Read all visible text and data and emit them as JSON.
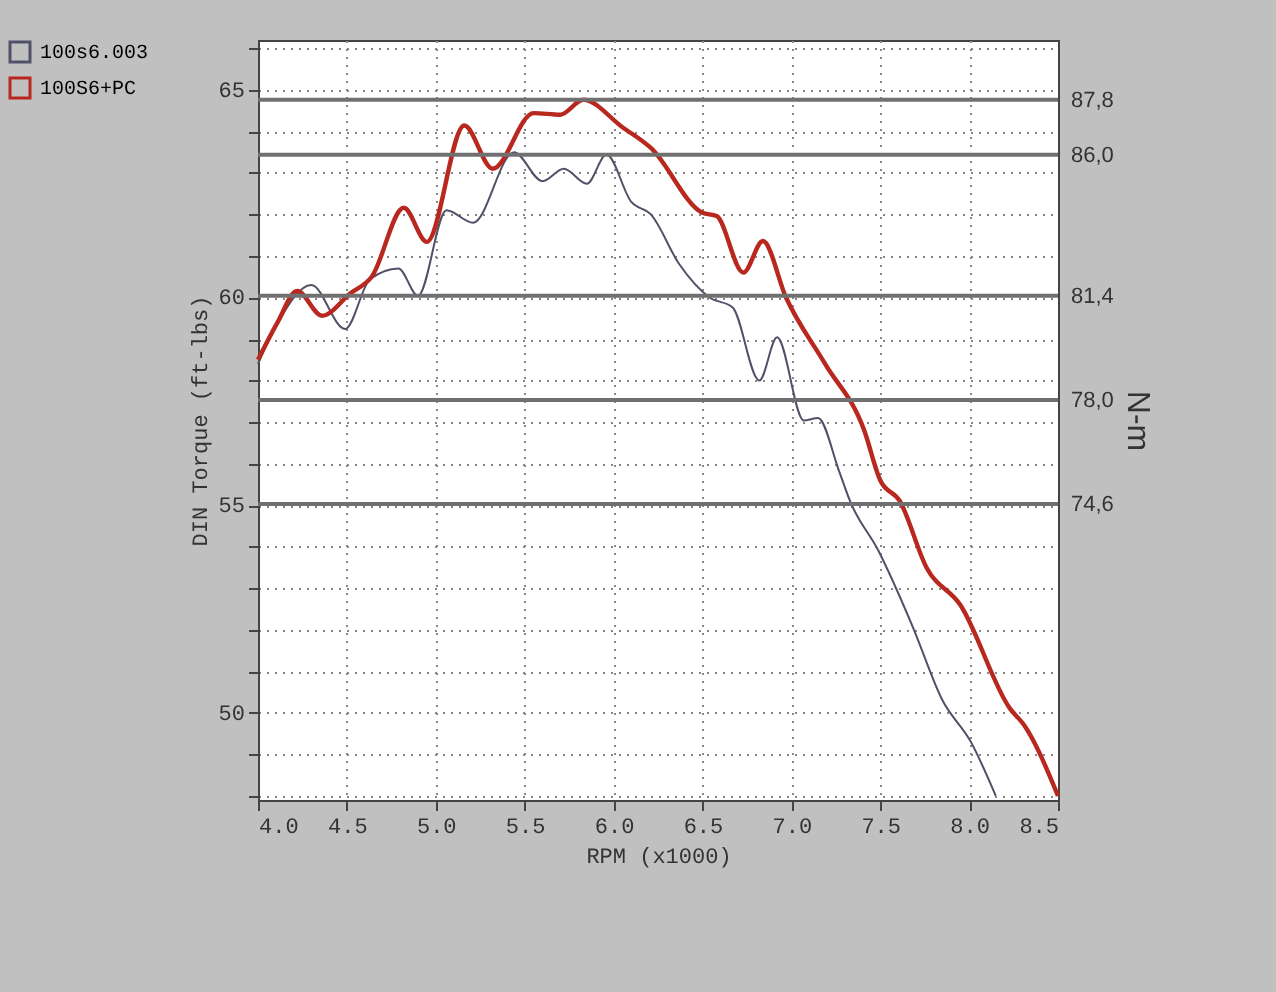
{
  "chart_data": {
    "type": "line",
    "xlabel": "RPM (x1000)",
    "ylabel": "DIN Torque (ft-lbs)",
    "y2label": "N-m",
    "xlim": [
      4.0,
      8.5
    ],
    "xticks": [
      {
        "value": 4,
        "label": "4.0"
      },
      4.5,
      {
        "value": 5,
        "label": "5.0"
      },
      5.5,
      {
        "value": 6,
        "label": "6.0"
      },
      6.5,
      {
        "value": 7,
        "label": "7.0"
      },
      7.5,
      {
        "value": 8,
        "label": "8.0"
      },
      8.5
    ],
    "ylim": [
      47.9,
      66.2
    ],
    "yticks": [
      {
        "value": 48,
        "label": null
      },
      {
        "value": 49,
        "label": null
      },
      50,
      {
        "value": 51,
        "label": null
      },
      {
        "value": 52,
        "label": null
      },
      {
        "value": 53,
        "label": null
      },
      {
        "value": 54,
        "label": null
      },
      55,
      {
        "value": 56,
        "label": null
      },
      {
        "value": 57,
        "label": null
      },
      {
        "value": 58,
        "label": null
      },
      {
        "value": 59,
        "label": null
      },
      60,
      {
        "value": 61,
        "label": null
      },
      {
        "value": 62,
        "label": null
      },
      {
        "value": 63,
        "label": null
      },
      {
        "value": 64,
        "label": null
      },
      65,
      {
        "value": 66,
        "label": null
      }
    ],
    "y2lim": [
      64.94,
      89.75
    ],
    "y2ticks": [
      {
        "value": 74.6,
        "label": "74,6"
      },
      {
        "value": 78.0,
        "label": "78,0"
      },
      {
        "value": 81.4,
        "label": "81,4"
      },
      {
        "value": 86.0,
        "label": "86,0"
      },
      {
        "value": 87.8,
        "label": "87,8"
      }
    ],
    "grid": true,
    "legend": "top left",
    "line_style": "solid",
    "marker": "none",
    "series": [
      {
        "name": "100s6.003",
        "color": "#505068",
        "x": [
          4.0,
          4.1,
          4.3,
          4.49,
          4.63,
          4.79,
          4.9,
          5.06,
          5.21,
          5.44,
          5.6,
          5.72,
          5.85,
          5.96,
          6.1,
          6.21,
          6.37,
          6.54,
          6.67,
          6.82,
          6.92,
          7.07,
          7.15,
          7.27,
          7.33,
          7.49,
          7.68,
          7.85,
          8.01,
          8.15
        ],
        "values": [
          58.4,
          59.3,
          60.3,
          59.24,
          60.44,
          60.7,
          60.04,
          62.1,
          61.8,
          63.5,
          62.8,
          63.1,
          62.74,
          63.44,
          62.3,
          62.0,
          60.8,
          60.0,
          59.76,
          58.0,
          59.04,
          57.04,
          57.1,
          55.8,
          55.1,
          53.9,
          52.1,
          50.3,
          49.3,
          48.0
        ]
      },
      {
        "name": "100S6+PC",
        "color": "#b8281e",
        "x": [
          4.0,
          4.11,
          4.22,
          4.36,
          4.52,
          4.64,
          4.82,
          4.95,
          5.16,
          5.32,
          5.55,
          5.7,
          5.83,
          6.05,
          6.21,
          6.5,
          6.58,
          6.73,
          6.84,
          6.97,
          7.19,
          7.41,
          7.5,
          7.61,
          7.76,
          7.95,
          8.23,
          8.31,
          8.5
        ],
        "values": [
          58.5,
          59.4,
          60.16,
          59.56,
          60.1,
          60.5,
          62.16,
          61.34,
          64.14,
          63.1,
          64.44,
          64.4,
          64.76,
          64.1,
          63.6,
          62.04,
          61.96,
          60.6,
          61.36,
          60.0,
          58.4,
          56.8,
          55.6,
          55.1,
          53.5,
          52.6,
          50.1,
          49.7,
          48.0
        ]
      }
    ]
  }
}
